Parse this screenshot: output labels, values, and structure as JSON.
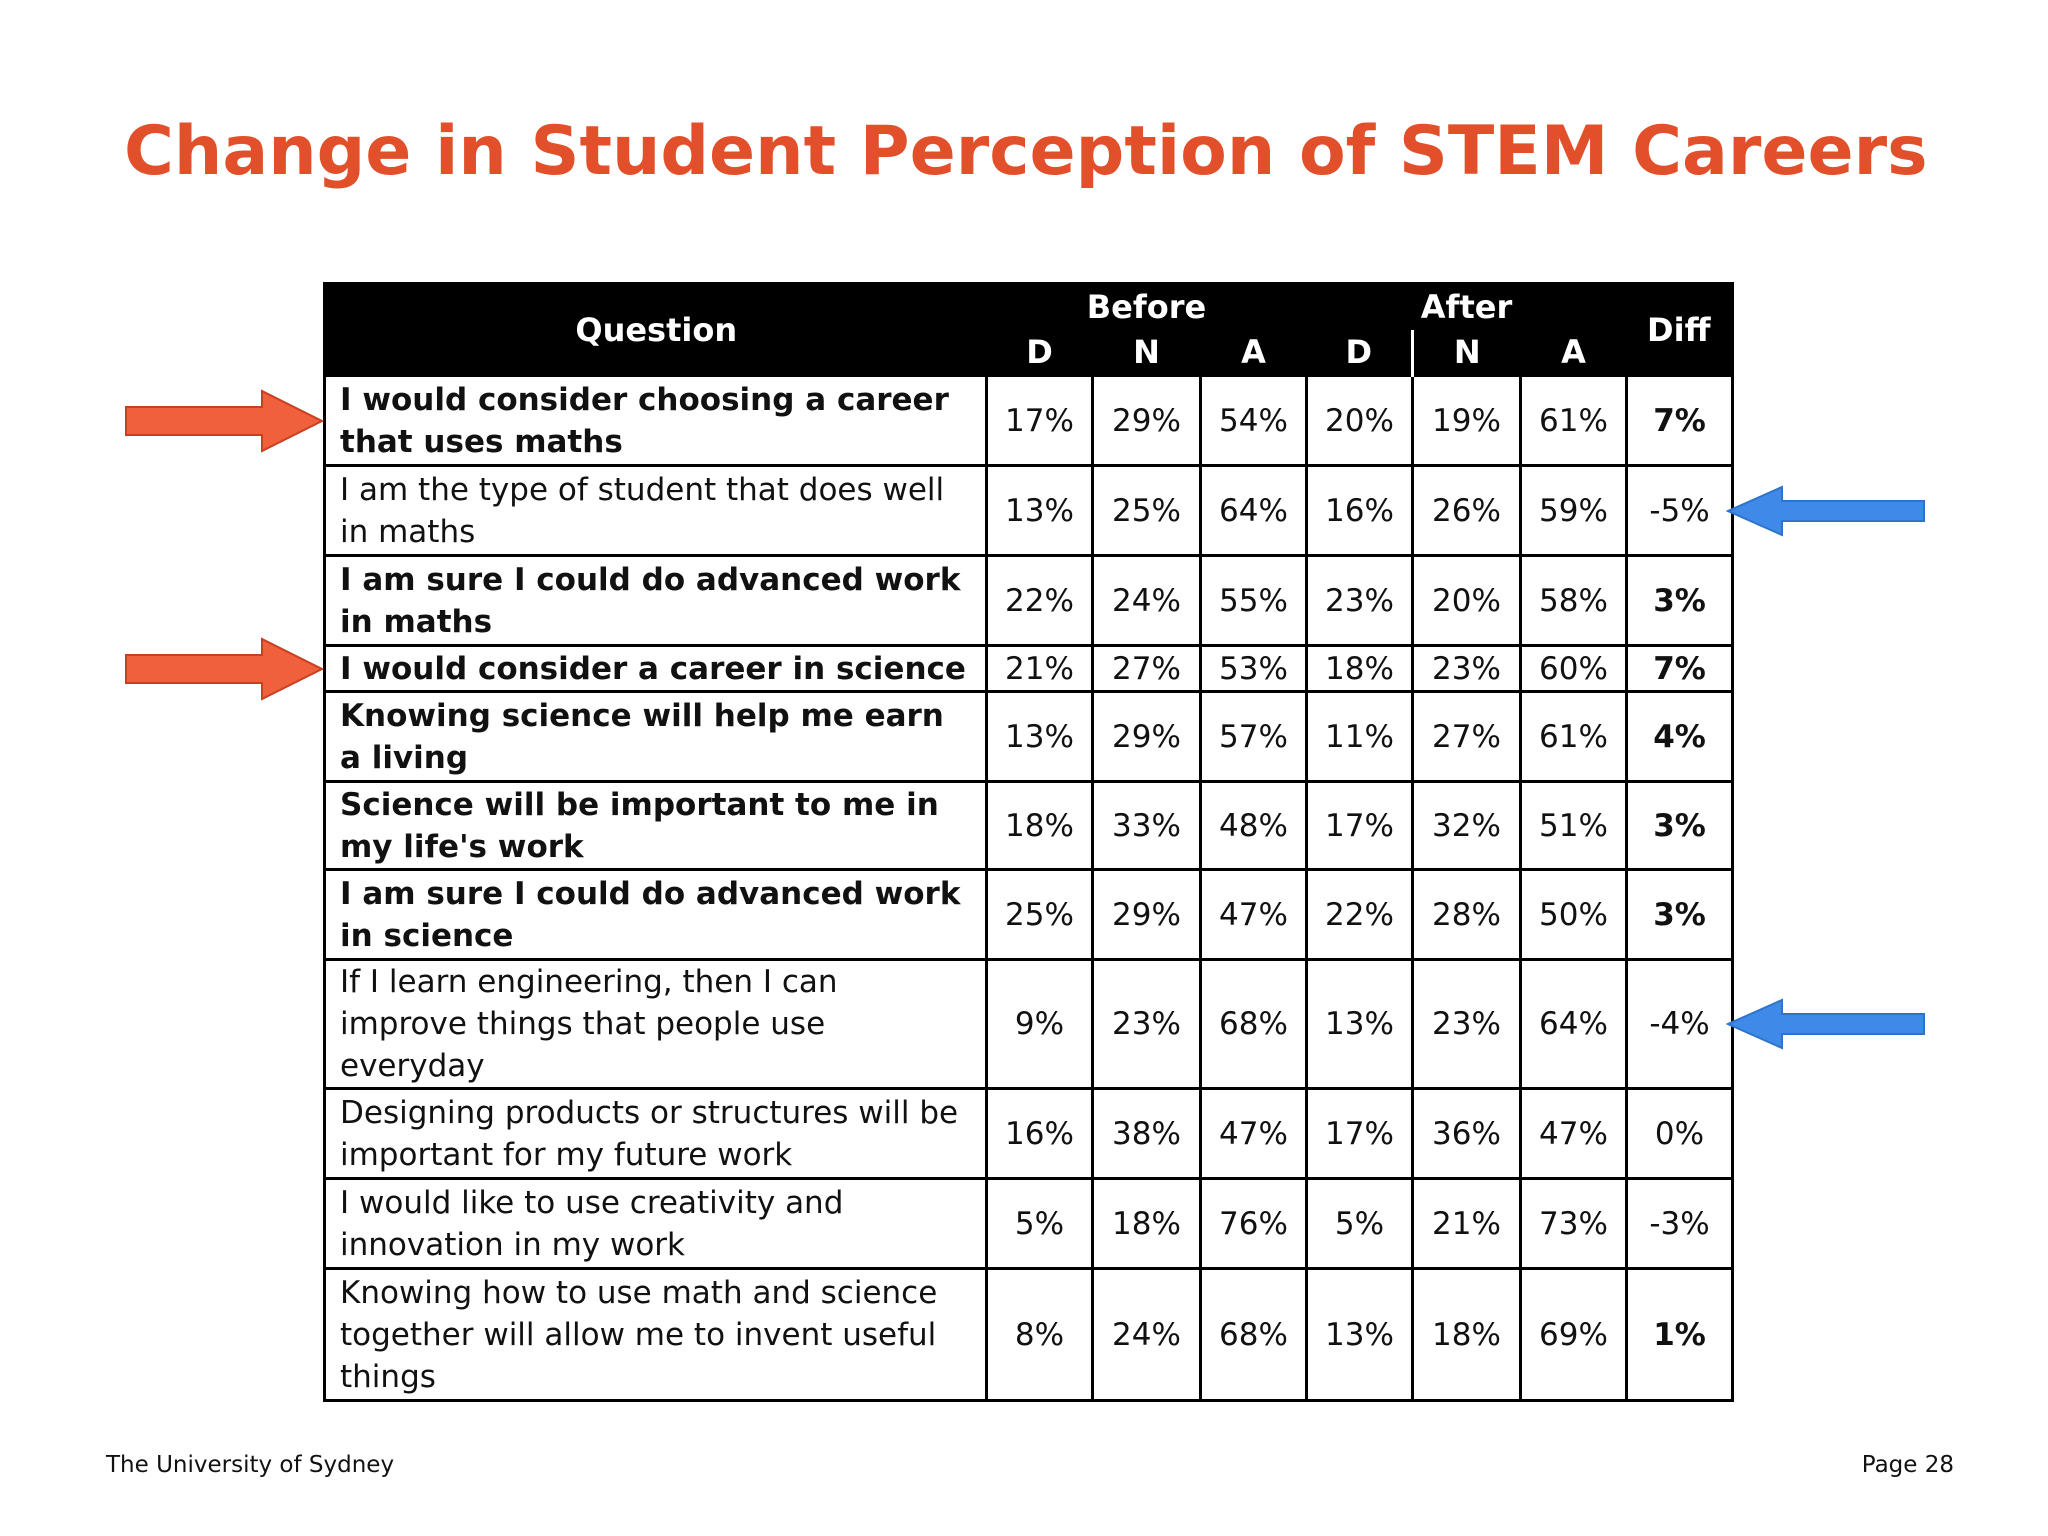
{
  "slide": {
    "title": "Change in Student Perception of STEM Careers",
    "title_color": "#e1502b"
  },
  "table": {
    "header": {
      "question": "Question",
      "before": "Before",
      "after": "After",
      "diff": "Diff",
      "sub_before": [
        "D",
        "N",
        "A"
      ],
      "sub_after": [
        "D",
        "N",
        "A"
      ]
    },
    "rows": [
      {
        "question": "I would consider choosing a career that uses maths",
        "bold": true,
        "before": [
          "17%",
          "29%",
          "54%"
        ],
        "after": [
          "20%",
          "19%",
          "61%"
        ],
        "diff": "7%"
      },
      {
        "question": "I am the type of student that does well in maths",
        "bold": false,
        "before": [
          "13%",
          "25%",
          "64%"
        ],
        "after": [
          "16%",
          "26%",
          "59%"
        ],
        "diff": "-5%"
      },
      {
        "question": "I am sure I could do advanced work in maths",
        "bold": true,
        "before": [
          "22%",
          "24%",
          "55%"
        ],
        "after": [
          "23%",
          "20%",
          "58%"
        ],
        "diff": "3%"
      },
      {
        "question": "I would consider a career in science",
        "bold": true,
        "before": [
          "21%",
          "27%",
          "53%"
        ],
        "after": [
          "18%",
          "23%",
          "60%"
        ],
        "diff": "7%"
      },
      {
        "question": "Knowing science will help me earn a living",
        "bold": true,
        "before": [
          "13%",
          "29%",
          "57%"
        ],
        "after": [
          "11%",
          "27%",
          "61%"
        ],
        "diff": "4%"
      },
      {
        "question": "Science will be important to me in my life's work",
        "bold": true,
        "before": [
          "18%",
          "33%",
          "48%"
        ],
        "after": [
          "17%",
          "32%",
          "51%"
        ],
        "diff": "3%"
      },
      {
        "question": "I am sure I could do advanced work in science",
        "bold": true,
        "before": [
          "25%",
          "29%",
          "47%"
        ],
        "after": [
          "22%",
          "28%",
          "50%"
        ],
        "diff": "3%"
      },
      {
        "question": "If I learn engineering, then I can improve things that people use everyday",
        "bold": false,
        "before": [
          "9%",
          "23%",
          "68%"
        ],
        "after": [
          "13%",
          "23%",
          "64%"
        ],
        "diff": "-4%"
      },
      {
        "question": "Designing products or structures will be important for my future work",
        "bold": false,
        "before": [
          "16%",
          "38%",
          "47%"
        ],
        "after": [
          "17%",
          "36%",
          "47%"
        ],
        "diff": "0%"
      },
      {
        "question": "I would like to use creativity and innovation in my work",
        "bold": false,
        "before": [
          "5%",
          "18%",
          "76%"
        ],
        "after": [
          "5%",
          "21%",
          "73%"
        ],
        "diff": "-3%"
      },
      {
        "question": "Knowing how to use math and science together will allow me to invent useful things",
        "bold": false,
        "before": [
          "8%",
          "24%",
          "68%"
        ],
        "after": [
          "13%",
          "18%",
          "69%"
        ],
        "diff": "1%",
        "diff_bold": true
      }
    ]
  },
  "annotations": {
    "left_arrows": {
      "color": "#f0603c",
      "rows": [
        1,
        4
      ],
      "icon": "right-arrow-icon"
    },
    "right_arrows": {
      "color": "#3f8ae8",
      "rows": [
        2,
        8
      ],
      "icon": "left-arrow-icon"
    }
  },
  "footer": {
    "left": "The University of Sydney",
    "right": "Page 28"
  }
}
